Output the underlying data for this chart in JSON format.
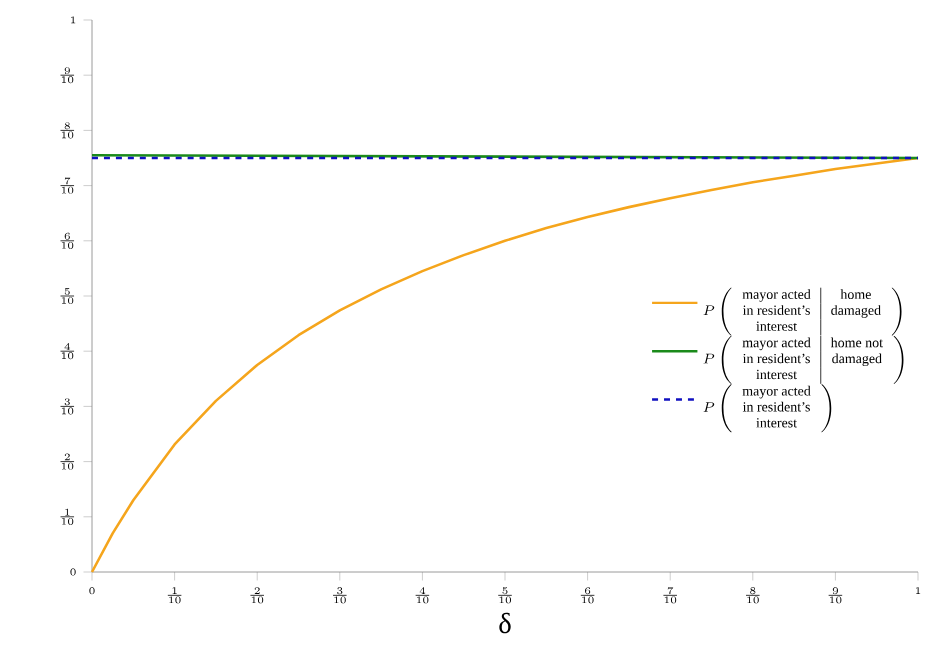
{
  "chart_data": {
    "type": "line",
    "xlabel": "δ",
    "xlim": [
      0,
      1
    ],
    "ylim": [
      0,
      1
    ],
    "xticks": [
      {
        "value": 0,
        "label": "0"
      },
      {
        "value": 0.1,
        "label": "\\frac{1}{10}"
      },
      {
        "value": 0.2,
        "label": "\\frac{2}{10}"
      },
      {
        "value": 0.3,
        "label": "\\frac{3}{10}"
      },
      {
        "value": 0.4,
        "label": "\\frac{4}{10}"
      },
      {
        "value": 0.5,
        "label": "\\frac{5}{10}"
      },
      {
        "value": 0.6,
        "label": "\\frac{6}{10}"
      },
      {
        "value": 0.7,
        "label": "\\frac{7}{10}"
      },
      {
        "value": 0.8,
        "label": "\\frac{8}{10}"
      },
      {
        "value": 0.9,
        "label": "\\frac{9}{10}"
      },
      {
        "value": 1,
        "label": "1"
      }
    ],
    "yticks": [
      {
        "value": 0,
        "label": "0"
      },
      {
        "value": 0.1,
        "label": "\\frac{1}{10}"
      },
      {
        "value": 0.2,
        "label": "\\frac{2}{10}"
      },
      {
        "value": 0.3,
        "label": "\\frac{3}{10}"
      },
      {
        "value": 0.4,
        "label": "\\frac{4}{10}"
      },
      {
        "value": 0.5,
        "label": "\\frac{5}{10}"
      },
      {
        "value": 0.6,
        "label": "\\frac{6}{10}"
      },
      {
        "value": 0.7,
        "label": "\\frac{7}{10}"
      },
      {
        "value": 0.8,
        "label": "\\frac{8}{10}"
      },
      {
        "value": 0.9,
        "label": "\\frac{9}{10}"
      },
      {
        "value": 1,
        "label": "1"
      }
    ],
    "legend": "right",
    "marker": "none",
    "series": [
      {
        "name": "P\\left(\\begin{array}{c|c}\\mbox{mayor acted} & \\mbox{home}\\\\ \\mbox{in resident's} & \\mbox{damaged}\\\\ \\mbox{interest} & \\end{array}\\right)",
        "color": "#f5a51c",
        "line_style": "solid",
        "x": [
          0,
          0.025,
          0.05,
          0.1,
          0.15,
          0.2,
          0.25,
          0.3,
          0.35,
          0.4,
          0.45,
          0.5,
          0.55,
          0.6,
          0.65,
          0.7,
          0.75,
          0.8,
          0.85,
          0.9,
          0.95,
          1
        ],
        "values": [
          0,
          0.07,
          0.13,
          0.231,
          0.31,
          0.375,
          0.429,
          0.474,
          0.512,
          0.545,
          0.574,
          0.6,
          0.623,
          0.643,
          0.661,
          0.677,
          0.692,
          0.706,
          0.718,
          0.73,
          0.74,
          0.75
        ]
      },
      {
        "name": "P\\left(\\begin{array}{c|c}\\mbox{mayor acted} & \\mbox{home not}\\\\ \\mbox{in resident's} & \\mbox{damaged}\\\\ \\mbox{interest} & \\end{array}\\right)",
        "color": "#1a8a1a",
        "line_style": "solid",
        "x": [
          0,
          1
        ],
        "values": [
          0.755,
          0.75
        ]
      },
      {
        "name": "P\\left(\\begin{array}{c}\\mbox{mayor acted}\\\\ \\mbox{in resident's}\\\\ \\mbox{interest}\\end{array}\\right)",
        "color": "#1010c0",
        "line_style": "dashed",
        "x": [
          0,
          1
        ],
        "values": [
          0.75,
          0.75
        ]
      }
    ]
  }
}
